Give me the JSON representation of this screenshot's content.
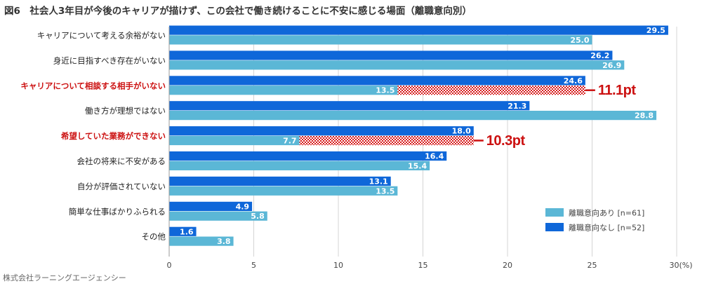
{
  "title": "図6　社会人3年目が今後のキャリアが描けず、この会社で働き続けることに不安に感じる場面（離職意向別）",
  "source": "株式会社ラーニングエージェンシー",
  "colors": {
    "series_yes": "#5bb7d6",
    "series_no": "#0f67d9",
    "highlight": "#cc1111",
    "category_text": "#222222",
    "grid": "#d4d4d4"
  },
  "chart_data": {
    "type": "bar",
    "orientation": "horizontal",
    "title": "図6　社会人3年目が今後のキャリアが描けず、この会社で働き続けることに不安に感じる場面（離職意向別）",
    "xlabel": "",
    "ylabel": "",
    "xlim": [
      0,
      30
    ],
    "xticks": [
      0,
      5,
      10,
      15,
      20,
      25
    ],
    "last_tick_label": "30(%)",
    "grid": true,
    "legend_position": "bottom-right",
    "categories": [
      "キャリアについて考える余裕がない",
      "身近に目指すべき存在がいない",
      "キャリアについて相談する相手がいない",
      "働き方が理想ではない",
      "希望していた業務ができない",
      "会社の将来に不安がある",
      "自分が評価されていない",
      "簡単な仕事ばかりふられる",
      "その他"
    ],
    "highlighted_categories": [
      2,
      4
    ],
    "series": [
      {
        "name": "離職意向なし [n=52]",
        "key": "no",
        "values": [
          29.5,
          26.2,
          24.6,
          21.3,
          18.0,
          16.4,
          13.1,
          4.9,
          1.6
        ]
      },
      {
        "name": "離職意向あり [n=61]",
        "key": "yes",
        "values": [
          25.0,
          26.9,
          13.5,
          28.8,
          7.7,
          15.4,
          13.5,
          5.8,
          3.8
        ]
      }
    ],
    "value_labels": {
      "no": [
        "29.5",
        "26.2",
        "24.6",
        "21.3",
        "18.0",
        "16.4",
        "13.1",
        "4.9",
        "1.6"
      ],
      "yes": [
        "25.0",
        "26.9",
        "13.5",
        "28.8",
        "7.7",
        "15.4",
        "13.5",
        "5.8",
        "3.8"
      ]
    },
    "legend": [
      "離職意向あり [n=61]",
      "離職意向なし [n=52]"
    ],
    "annotations": [
      {
        "category_index": 2,
        "from": 13.5,
        "to": 24.6,
        "label": "11.1pt"
      },
      {
        "category_index": 4,
        "from": 7.7,
        "to": 18.0,
        "label": "10.3pt"
      }
    ]
  }
}
